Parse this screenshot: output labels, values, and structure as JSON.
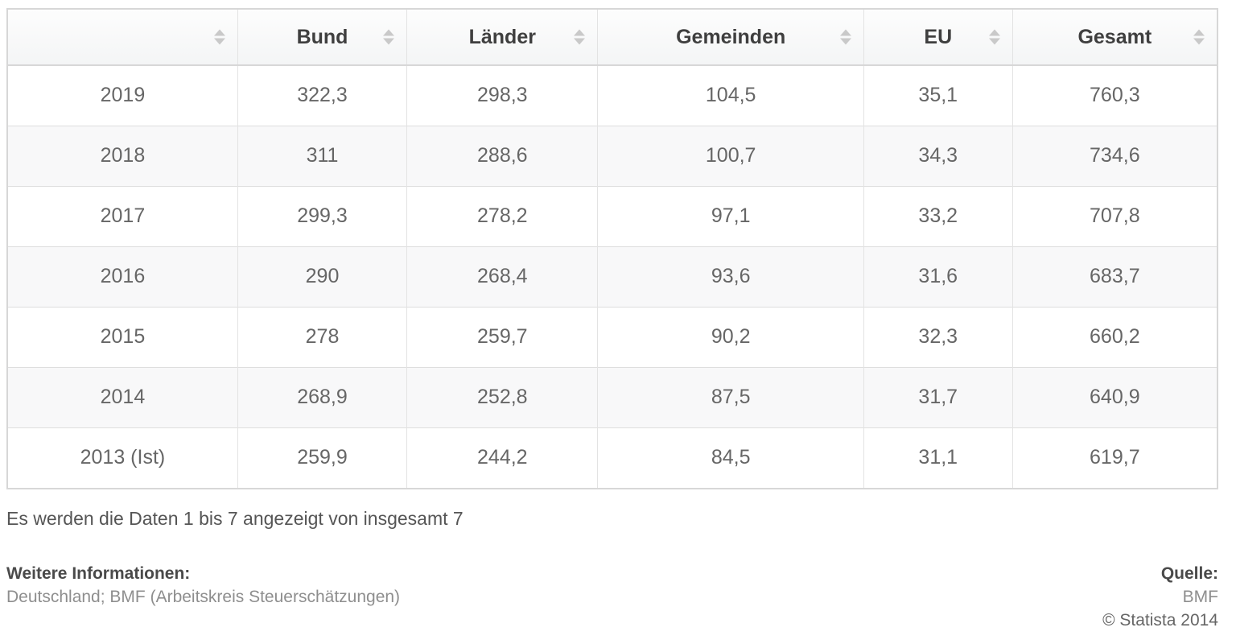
{
  "chart_data": {
    "type": "table",
    "columns": [
      "",
      "Bund",
      "Länder",
      "Gemeinden",
      "EU",
      "Gesamt"
    ],
    "rows": [
      [
        "2019",
        "322,3",
        "298,3",
        "104,5",
        "35,1",
        "760,3"
      ],
      [
        "2018",
        "311",
        "288,6",
        "100,7",
        "34,3",
        "734,6"
      ],
      [
        "2017",
        "299,3",
        "278,2",
        "97,1",
        "33,2",
        "707,8"
      ],
      [
        "2016",
        "290",
        "268,4",
        "93,6",
        "31,6",
        "683,7"
      ],
      [
        "2015",
        "278",
        "259,7",
        "90,2",
        "32,3",
        "660,2"
      ],
      [
        "2014",
        "268,9",
        "252,8",
        "87,5",
        "31,7",
        "640,9"
      ],
      [
        "2013 (Ist)",
        "259,9",
        "244,2",
        "84,5",
        "31,1",
        "619,7"
      ]
    ]
  },
  "status_text": "Es werden die Daten 1 bis 7 angezeigt von insgesamt 7",
  "footer": {
    "info_label": "Weitere Informationen:",
    "info_value": "Deutschland; BMF (Arbeitskreis Steuerschätzungen)",
    "source_label": "Quelle:",
    "source_value": "BMF",
    "copyright": "© Statista 2014"
  },
  "colors": {
    "header_text": "#3f3f3f",
    "body_text": "#666666",
    "border": "#d7d7d7",
    "zebra_row": "#f8f8f9",
    "sort_arrow": "#c9c9c9"
  }
}
